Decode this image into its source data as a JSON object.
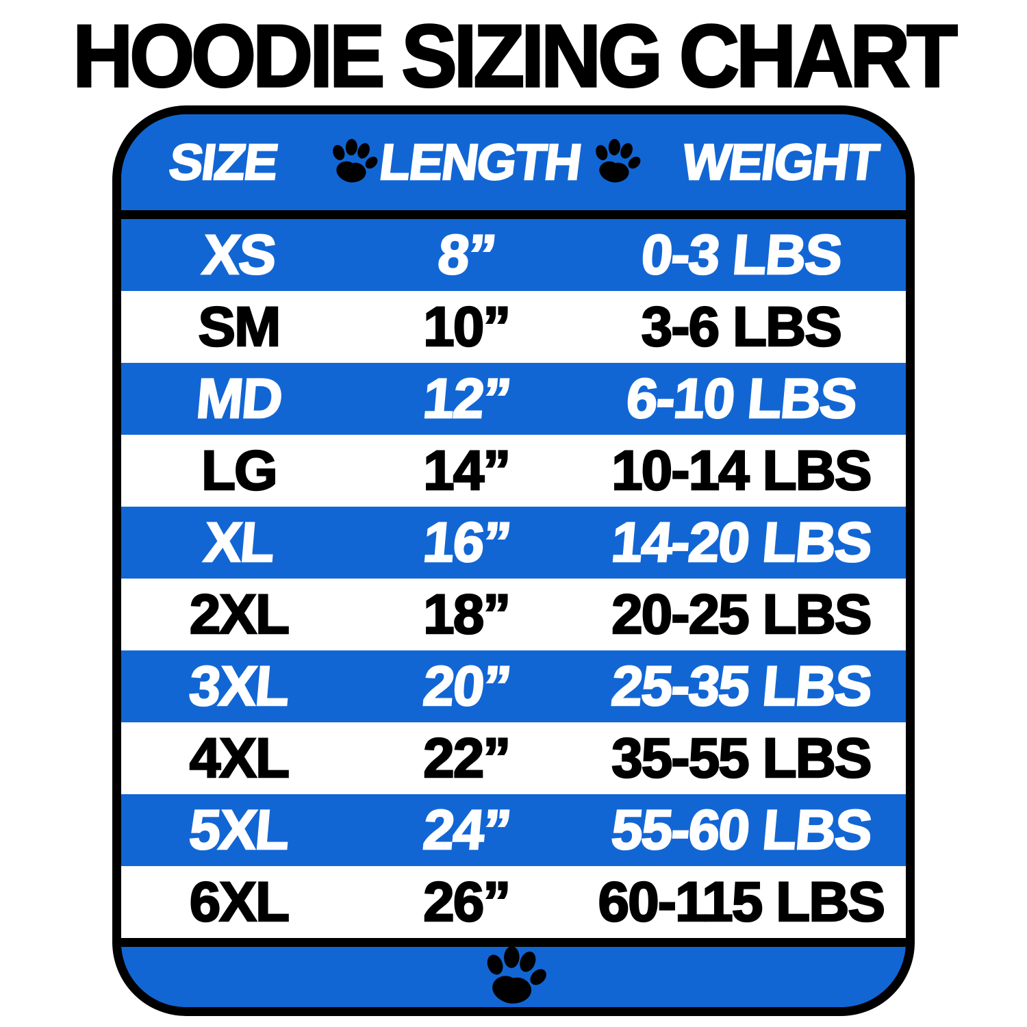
{
  "page": {
    "title": "HOODIE SIZING CHART"
  },
  "chart_data": {
    "type": "table",
    "title": "HOODIE SIZING CHART",
    "columns": [
      "SIZE",
      "LENGTH",
      "WEIGHT"
    ],
    "rows": [
      [
        "XS",
        "8”",
        "0-3 LBS"
      ],
      [
        "SM",
        "10”",
        "3-6 LBS"
      ],
      [
        "MD",
        "12”",
        "6-10 LBS"
      ],
      [
        "LG",
        "14”",
        "10-14 LBS"
      ],
      [
        "XL",
        "16”",
        "14-20 LBS"
      ],
      [
        "2XL",
        "18”",
        "20-25 LBS"
      ],
      [
        "3XL",
        "20”",
        "25-35 LBS"
      ],
      [
        "4XL",
        "22”",
        "35-55 LBS"
      ],
      [
        "5XL",
        "24”",
        "55-60 LBS"
      ],
      [
        "6XL",
        "26”",
        "60-115 LBS"
      ]
    ],
    "striping": "rows alternate blue/white starting with blue",
    "header_separator_icon": "paw-icon",
    "footer_icon": "paw-icon"
  },
  "colors": {
    "row_blue": "#1266D4",
    "row_white": "#FFFFFF",
    "text_on_blue": "#FFFFFF",
    "text_on_white": "#000000",
    "border_black": "#000000",
    "page_background": "#FFFFFF"
  }
}
